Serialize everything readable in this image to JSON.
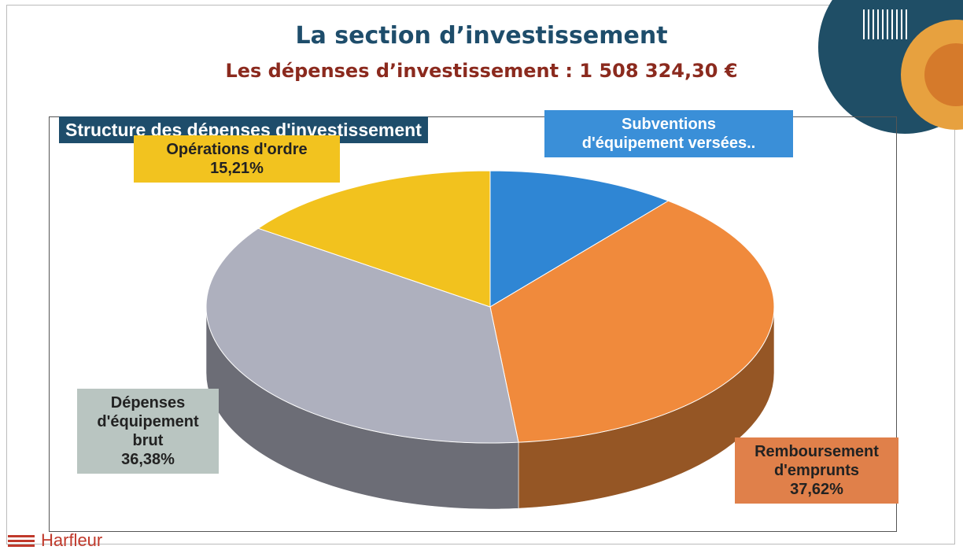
{
  "slide": {
    "title": "La section d’investissement",
    "subtitle": "Les dépenses d’investissement : 1 508 324,30 €",
    "footer": "Harfleur"
  },
  "chart_data": {
    "type": "pie",
    "title": "Structure des dépenses d'investissement",
    "categories": [
      "Subventions d'équipement versées..",
      "Remboursement d'emprunts",
      "Dépenses d'équipement brut",
      "Opérations d'ordre"
    ],
    "values": [
      10.79,
      37.62,
      36.38,
      15.21
    ],
    "value_labels": [
      null,
      "37,62%",
      "36,38%",
      "15,21%"
    ],
    "colors": [
      "#2f86d4",
      "#f08a3c",
      "#aeb0be",
      "#f2c21e"
    ],
    "start_angle": -90,
    "direction": "clockwise",
    "three_d": true
  }
}
